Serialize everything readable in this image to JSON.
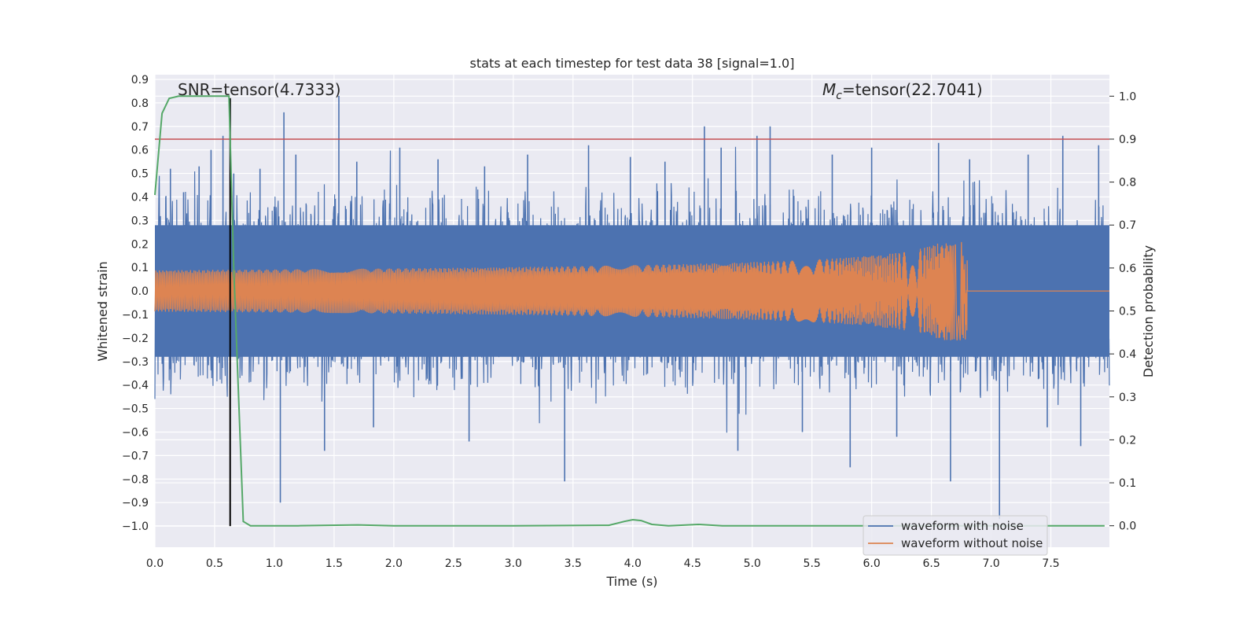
{
  "chart_data": {
    "type": "line",
    "title": "stats at each timestep for test data 38 [signal=1.0]",
    "xlabel": "Time (s)",
    "ylabel_left": "Whitened strain",
    "ylabel_right": "Detection probability",
    "xlim": [
      0.0,
      7.99
    ],
    "ylim_left": [
      -1.09,
      0.92
    ],
    "ylim_right": [
      -0.05,
      1.05
    ],
    "x_ticks": [
      "0.0",
      "0.5",
      "1.0",
      "1.5",
      "2.0",
      "2.5",
      "3.0",
      "3.5",
      "4.0",
      "4.5",
      "5.0",
      "5.5",
      "6.0",
      "6.5",
      "7.0",
      "7.5"
    ],
    "x_tick_values": [
      0.0,
      0.5,
      1.0,
      1.5,
      2.0,
      2.5,
      3.0,
      3.5,
      4.0,
      4.5,
      5.0,
      5.5,
      6.0,
      6.5,
      7.0,
      7.5
    ],
    "y_left_ticks": [
      "0.9",
      "0.8",
      "0.7",
      "0.6",
      "0.5",
      "0.4",
      "0.3",
      "0.2",
      "0.1",
      "0.0",
      "−0.1",
      "−0.2",
      "−0.3",
      "−0.4",
      "−0.5",
      "−0.6",
      "−0.7",
      "−0.8",
      "−0.9",
      "−1.0"
    ],
    "y_left_tick_values": [
      0.9,
      0.8,
      0.7,
      0.6,
      0.5,
      0.4,
      0.3,
      0.2,
      0.1,
      0.0,
      -0.1,
      -0.2,
      -0.3,
      -0.4,
      -0.5,
      -0.6,
      -0.7,
      -0.8,
      -0.9,
      -1.0
    ],
    "y_right_ticks": [
      "1.0",
      "0.9",
      "0.8",
      "0.7",
      "0.6",
      "0.5",
      "0.4",
      "0.3",
      "0.2",
      "0.1",
      "0.0"
    ],
    "y_right_tick_values": [
      1.0,
      0.9,
      0.8,
      0.7,
      0.6,
      0.5,
      0.4,
      0.3,
      0.2,
      0.1,
      0.0
    ],
    "annotations": {
      "snr": "SNR=tensor(4.7333)",
      "mc_symbol": "M",
      "mc_subscript": "c",
      "mc_value": "=tensor(22.7041)"
    },
    "threshold": {
      "axis": "right",
      "value": 0.9,
      "color": "#c44e52"
    },
    "marker_line": {
      "x": 0.63,
      "y_from": -1.0,
      "y_to": 0.82,
      "color": "#000000"
    },
    "series": [
      {
        "name": "waveform with noise",
        "color": "#4c72b0",
        "axis": "left",
        "band_low": -0.28,
        "band_high": 0.28,
        "spikes": [
          {
            "x": 0.13,
            "y": 0.52
          },
          {
            "x": 0.24,
            "y": 0.42
          },
          {
            "x": 0.37,
            "y": 0.53
          },
          {
            "x": 0.47,
            "y": 0.6
          },
          {
            "x": 0.57,
            "y": 0.66
          },
          {
            "x": 0.66,
            "y": 0.5
          },
          {
            "x": 0.88,
            "y": 0.52
          },
          {
            "x": 1.08,
            "y": 0.76
          },
          {
            "x": 1.05,
            "y": -0.9
          },
          {
            "x": 1.18,
            "y": 0.58
          },
          {
            "x": 1.42,
            "y": -0.68
          },
          {
            "x": 1.54,
            "y": 0.83
          },
          {
            "x": 1.69,
            "y": 0.55
          },
          {
            "x": 1.83,
            "y": -0.58
          },
          {
            "x": 2.05,
            "y": 0.61
          },
          {
            "x": 2.37,
            "y": 0.56
          },
          {
            "x": 2.63,
            "y": -0.64
          },
          {
            "x": 2.76,
            "y": 0.53
          },
          {
            "x": 3.12,
            "y": 0.58
          },
          {
            "x": 3.43,
            "y": -0.81
          },
          {
            "x": 3.63,
            "y": 0.62
          },
          {
            "x": 3.98,
            "y": 0.57
          },
          {
            "x": 4.27,
            "y": 0.55
          },
          {
            "x": 4.6,
            "y": 0.7
          },
          {
            "x": 4.74,
            "y": 0.61
          },
          {
            "x": 4.88,
            "y": -0.68
          },
          {
            "x": 5.04,
            "y": 0.66
          },
          {
            "x": 5.15,
            "y": 0.7
          },
          {
            "x": 5.42,
            "y": -0.6
          },
          {
            "x": 5.67,
            "y": 0.58
          },
          {
            "x": 5.82,
            "y": -0.75
          },
          {
            "x": 6.0,
            "y": 0.61
          },
          {
            "x": 6.21,
            "y": -0.62
          },
          {
            "x": 6.56,
            "y": 0.63
          },
          {
            "x": 6.66,
            "y": -0.81
          },
          {
            "x": 6.82,
            "y": 0.56
          },
          {
            "x": 7.07,
            "y": -0.97
          },
          {
            "x": 7.31,
            "y": 0.58
          },
          {
            "x": 7.47,
            "y": -0.58
          },
          {
            "x": 7.6,
            "y": 0.66
          },
          {
            "x": 7.75,
            "y": -0.66
          },
          {
            "x": 7.9,
            "y": 0.62
          }
        ]
      },
      {
        "name": "waveform without noise",
        "color": "#dd8452",
        "axis": "left",
        "chirp_start": 0.0,
        "chirp_merger": 6.8,
        "chirp_peak_amplitude": 0.21
      },
      {
        "name": "detection probability",
        "color": "#55a868",
        "axis": "right",
        "x": [
          0.0,
          0.06,
          0.12,
          0.2,
          0.35,
          0.5,
          0.62,
          0.66,
          0.74,
          0.8,
          0.9,
          1.2,
          1.7,
          2.0,
          3.0,
          3.8,
          3.93,
          4.0,
          4.07,
          4.16,
          4.3,
          4.55,
          4.75,
          5.0,
          6.0,
          7.0,
          7.95
        ],
        "y": [
          0.77,
          0.96,
          0.995,
          1.0,
          1.0,
          1.0,
          1.0,
          0.6,
          0.01,
          0.0,
          0.0,
          0.0,
          0.002,
          0.0,
          0.0,
          0.001,
          0.01,
          0.014,
          0.012,
          0.003,
          0.0,
          0.003,
          0.0,
          0.0,
          0.0,
          0.0,
          0.0
        ]
      }
    ],
    "legend": {
      "position": "bottom-right",
      "entries": [
        "waveform with noise",
        "waveform without noise"
      ]
    }
  }
}
